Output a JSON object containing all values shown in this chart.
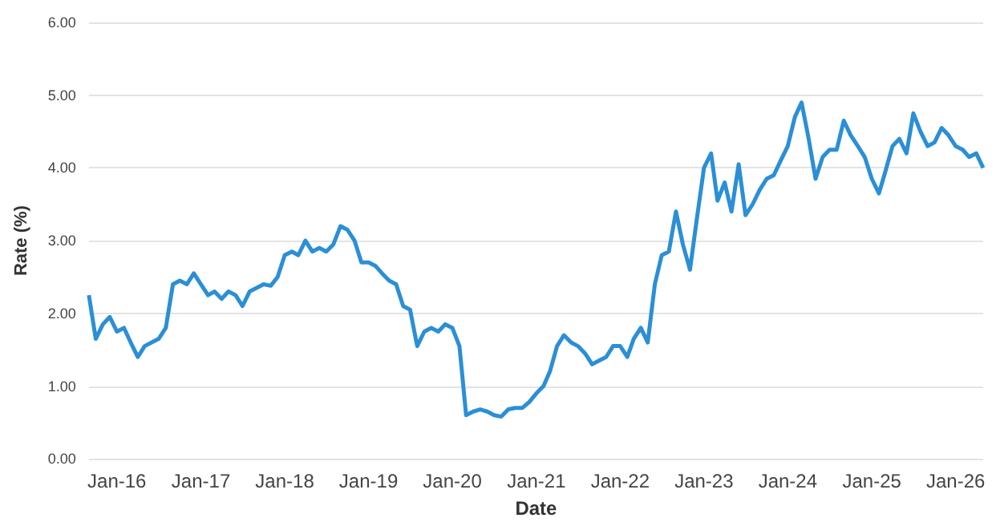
{
  "chart_data": {
    "type": "line",
    "xlabel": "Date",
    "ylabel": "Rate (%)",
    "x": [
      "2015-09",
      "2015-10",
      "2015-11",
      "2015-12",
      "2016-01",
      "2016-02",
      "2016-03",
      "2016-04",
      "2016-05",
      "2016-06",
      "2016-07",
      "2016-08",
      "2016-09",
      "2016-10",
      "2016-11",
      "2016-12",
      "2017-01",
      "2017-02",
      "2017-03",
      "2017-04",
      "2017-05",
      "2017-06",
      "2017-07",
      "2017-08",
      "2017-09",
      "2017-10",
      "2017-11",
      "2017-12",
      "2018-01",
      "2018-02",
      "2018-03",
      "2018-04",
      "2018-05",
      "2018-06",
      "2018-07",
      "2018-08",
      "2018-09",
      "2018-10",
      "2018-11",
      "2018-12",
      "2019-01",
      "2019-02",
      "2019-03",
      "2019-04",
      "2019-05",
      "2019-06",
      "2019-07",
      "2019-08",
      "2019-09",
      "2019-10",
      "2019-11",
      "2019-12",
      "2020-01",
      "2020-02",
      "2020-03",
      "2020-04",
      "2020-05",
      "2020-06",
      "2020-07",
      "2020-08",
      "2020-09",
      "2020-10",
      "2020-11",
      "2020-12",
      "2021-01",
      "2021-02",
      "2021-03",
      "2021-04",
      "2021-05",
      "2021-06",
      "2021-07",
      "2021-08",
      "2021-09",
      "2021-10",
      "2021-11",
      "2021-12",
      "2022-01",
      "2022-02",
      "2022-03",
      "2022-04",
      "2022-05",
      "2022-06",
      "2022-07",
      "2022-08",
      "2022-09",
      "2022-10",
      "2022-11",
      "2022-12",
      "2023-01",
      "2023-02",
      "2023-03",
      "2023-04",
      "2023-05",
      "2023-06",
      "2023-07",
      "2023-08",
      "2023-09",
      "2023-10",
      "2023-11",
      "2023-12",
      "2024-01",
      "2024-02",
      "2024-03",
      "2024-04",
      "2024-05",
      "2024-06",
      "2024-07",
      "2024-08",
      "2024-09",
      "2024-10",
      "2024-11",
      "2024-12",
      "2025-01",
      "2025-02",
      "2025-03",
      "2025-04",
      "2025-05",
      "2025-06",
      "2025-07",
      "2025-08",
      "2025-09",
      "2025-10",
      "2025-11",
      "2025-12",
      "2026-01",
      "2026-02",
      "2026-03",
      "2026-04",
      "2026-05"
    ],
    "series": [
      {
        "color": "#2b8fd6",
        "values": [
          2.25,
          1.65,
          1.85,
          1.95,
          1.75,
          1.8,
          1.6,
          1.4,
          1.55,
          1.6,
          1.65,
          1.8,
          2.4,
          2.45,
          2.4,
          2.55,
          2.4,
          2.25,
          2.3,
          2.2,
          2.3,
          2.25,
          2.1,
          2.3,
          2.35,
          2.4,
          2.38,
          2.5,
          2.8,
          2.85,
          2.8,
          3.0,
          2.85,
          2.9,
          2.85,
          2.95,
          3.2,
          3.15,
          3.0,
          2.7,
          2.7,
          2.65,
          2.55,
          2.45,
          2.4,
          2.1,
          2.05,
          1.55,
          1.75,
          1.8,
          1.75,
          1.85,
          1.8,
          1.55,
          0.6,
          0.65,
          0.68,
          0.65,
          0.6,
          0.58,
          0.68,
          0.7,
          0.7,
          0.78,
          0.9,
          1.0,
          1.2,
          1.55,
          1.7,
          1.6,
          1.55,
          1.45,
          1.3,
          1.35,
          1.4,
          1.55,
          1.55,
          1.4,
          1.65,
          1.8,
          1.6,
          2.4,
          2.8,
          2.85,
          3.4,
          2.95,
          2.6,
          3.3,
          4.0,
          4.2,
          3.55,
          3.8,
          3.4,
          4.05,
          3.35,
          3.5,
          3.7,
          3.85,
          3.9,
          4.1,
          4.3,
          4.7,
          4.9,
          4.4,
          3.85,
          4.15,
          4.25,
          4.25,
          4.65,
          4.45,
          4.3,
          4.15,
          3.85,
          3.65,
          3.95,
          4.3,
          4.4,
          4.2,
          4.75,
          4.5,
          4.3,
          4.35,
          4.55,
          4.45,
          4.3,
          4.25,
          4.15,
          4.2,
          4.0
        ]
      }
    ],
    "xlim": [
      "2015-09",
      "2026-05"
    ],
    "xticks": [
      {
        "value": "2016-01",
        "label": "Jan-16"
      },
      {
        "value": "2017-01",
        "label": "Jan-17"
      },
      {
        "value": "2018-01",
        "label": "Jan-18"
      },
      {
        "value": "2019-01",
        "label": "Jan-19"
      },
      {
        "value": "2020-01",
        "label": "Jan-20"
      },
      {
        "value": "2021-01",
        "label": "Jan-21"
      },
      {
        "value": "2022-01",
        "label": "Jan-22"
      },
      {
        "value": "2023-01",
        "label": "Jan-23"
      },
      {
        "value": "2024-01",
        "label": "Jan-24"
      },
      {
        "value": "2025-01",
        "label": "Jan-25"
      },
      {
        "value": "2026-01",
        "label": "Jan-26"
      }
    ],
    "ylim": [
      0,
      6
    ],
    "yticks": [
      {
        "value": 0,
        "label": "0.00"
      },
      {
        "value": 1,
        "label": "1.00"
      },
      {
        "value": 2,
        "label": "2.00"
      },
      {
        "value": 3,
        "label": "3.00"
      },
      {
        "value": 4,
        "label": "4.00"
      },
      {
        "value": 5,
        "label": "5.00"
      },
      {
        "value": 6,
        "label": "6.00"
      }
    ],
    "grid": "y",
    "marker": "none",
    "line_style": "solid"
  }
}
